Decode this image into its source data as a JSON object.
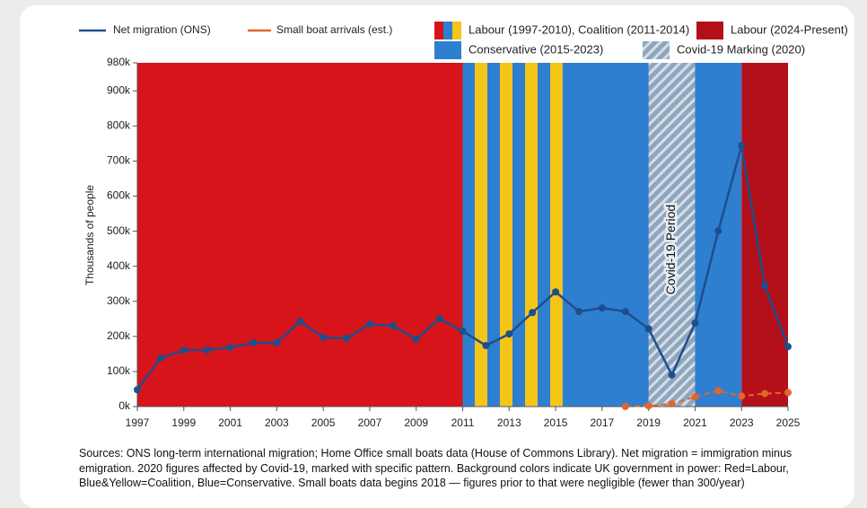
{
  "chart_data": {
    "type": "line",
    "y_label": "Thousands of people",
    "x": [
      1997,
      1998,
      1999,
      2000,
      2001,
      2002,
      2003,
      2004,
      2005,
      2006,
      2007,
      2008,
      2009,
      2010,
      2011,
      2012,
      2013,
      2014,
      2015,
      2016,
      2017,
      2018,
      2019,
      2020,
      2021,
      2022,
      2023,
      2024,
      2025
    ],
    "series": [
      {
        "name": "Net migration (ONS)",
        "color": "#1f4e8c",
        "style": "solid",
        "x": [
          1997,
          1998,
          1999,
          2000,
          2001,
          2002,
          2003,
          2004,
          2005,
          2006,
          2007,
          2008,
          2009,
          2010,
          2011,
          2012,
          2013,
          2014,
          2015,
          2016,
          2017,
          2018,
          2019,
          2020,
          2021,
          2022,
          2023,
          2024,
          2025
        ],
        "values": [
          48,
          138,
          161,
          161,
          169,
          182,
          182,
          243,
          197,
          194,
          235,
          230,
          192,
          251,
          215,
          174,
          207,
          268,
          327,
          271,
          281,
          271,
          222,
          90,
          238,
          501,
          744,
          345,
          171
        ]
      },
      {
        "name": "Small boat arrivals (est.)",
        "color": "#e0662a",
        "style": "dashed",
        "x": [
          2018,
          2019,
          2020,
          2021,
          2022,
          2023,
          2024,
          2025
        ],
        "values": [
          0.3,
          2,
          8,
          28,
          45,
          30,
          37,
          40
        ]
      }
    ],
    "bands": [
      {
        "start": 1997,
        "end": 2011,
        "fill": "#d7141a"
      },
      {
        "start": 2011,
        "end": 2015.3,
        "fill": "coalition"
      },
      {
        "start": 2015.3,
        "end": 2023,
        "fill": "#2e7fd0"
      },
      {
        "start": 2023,
        "end": 2025,
        "fill": "#b3101a"
      },
      {
        "start": 2019,
        "end": 2021,
        "fill": "covid"
      }
    ],
    "band_legend": [
      {
        "label": "Labour (1997-2010), Coalition (2011-2014)",
        "fill": "coalition"
      },
      {
        "label": "Labour (2024-Present)",
        "fill": "#b3101a"
      },
      {
        "label": "Conservative (2015-2023)",
        "fill": "#2e7fd0"
      },
      {
        "label": "Covid-19 Marking (2020)",
        "fill": "covid"
      }
    ],
    "annotation": "Covid-19 Period",
    "xlim": [
      1997,
      2025
    ],
    "xticks": [
      1997,
      1999,
      2001,
      2003,
      2005,
      2007,
      2009,
      2011,
      2013,
      2015,
      2017,
      2019,
      2021,
      2023,
      2025
    ],
    "ylim": [
      0,
      980
    ],
    "yticks": [
      {
        "value": 0,
        "label": "0k"
      },
      {
        "value": 100,
        "label": "100k"
      },
      {
        "value": 200,
        "label": "200k"
      },
      {
        "value": 300,
        "label": "300k"
      },
      {
        "value": 400,
        "label": "400k"
      },
      {
        "value": 500,
        "label": "500k"
      },
      {
        "value": 600,
        "label": "600k"
      },
      {
        "value": 700,
        "label": "700k"
      },
      {
        "value": 800,
        "label": "800k"
      },
      {
        "value": 900,
        "label": "900k"
      },
      {
        "value": 980,
        "label": "980k"
      }
    ],
    "source": "Sources: ONS long-term international migration; Home Office small boats data (House of Commons Library). Net migration = immigration minus emigration. 2020 figures affected by Covid-19, marked with specific pattern. Background colors indicate UK government in power: Red=Labour, Blue&Yellow=Coalition, Blue=Conservative. Small boats data begins 2018 — figures prior to that were negligible (fewer than 300/year)"
  }
}
